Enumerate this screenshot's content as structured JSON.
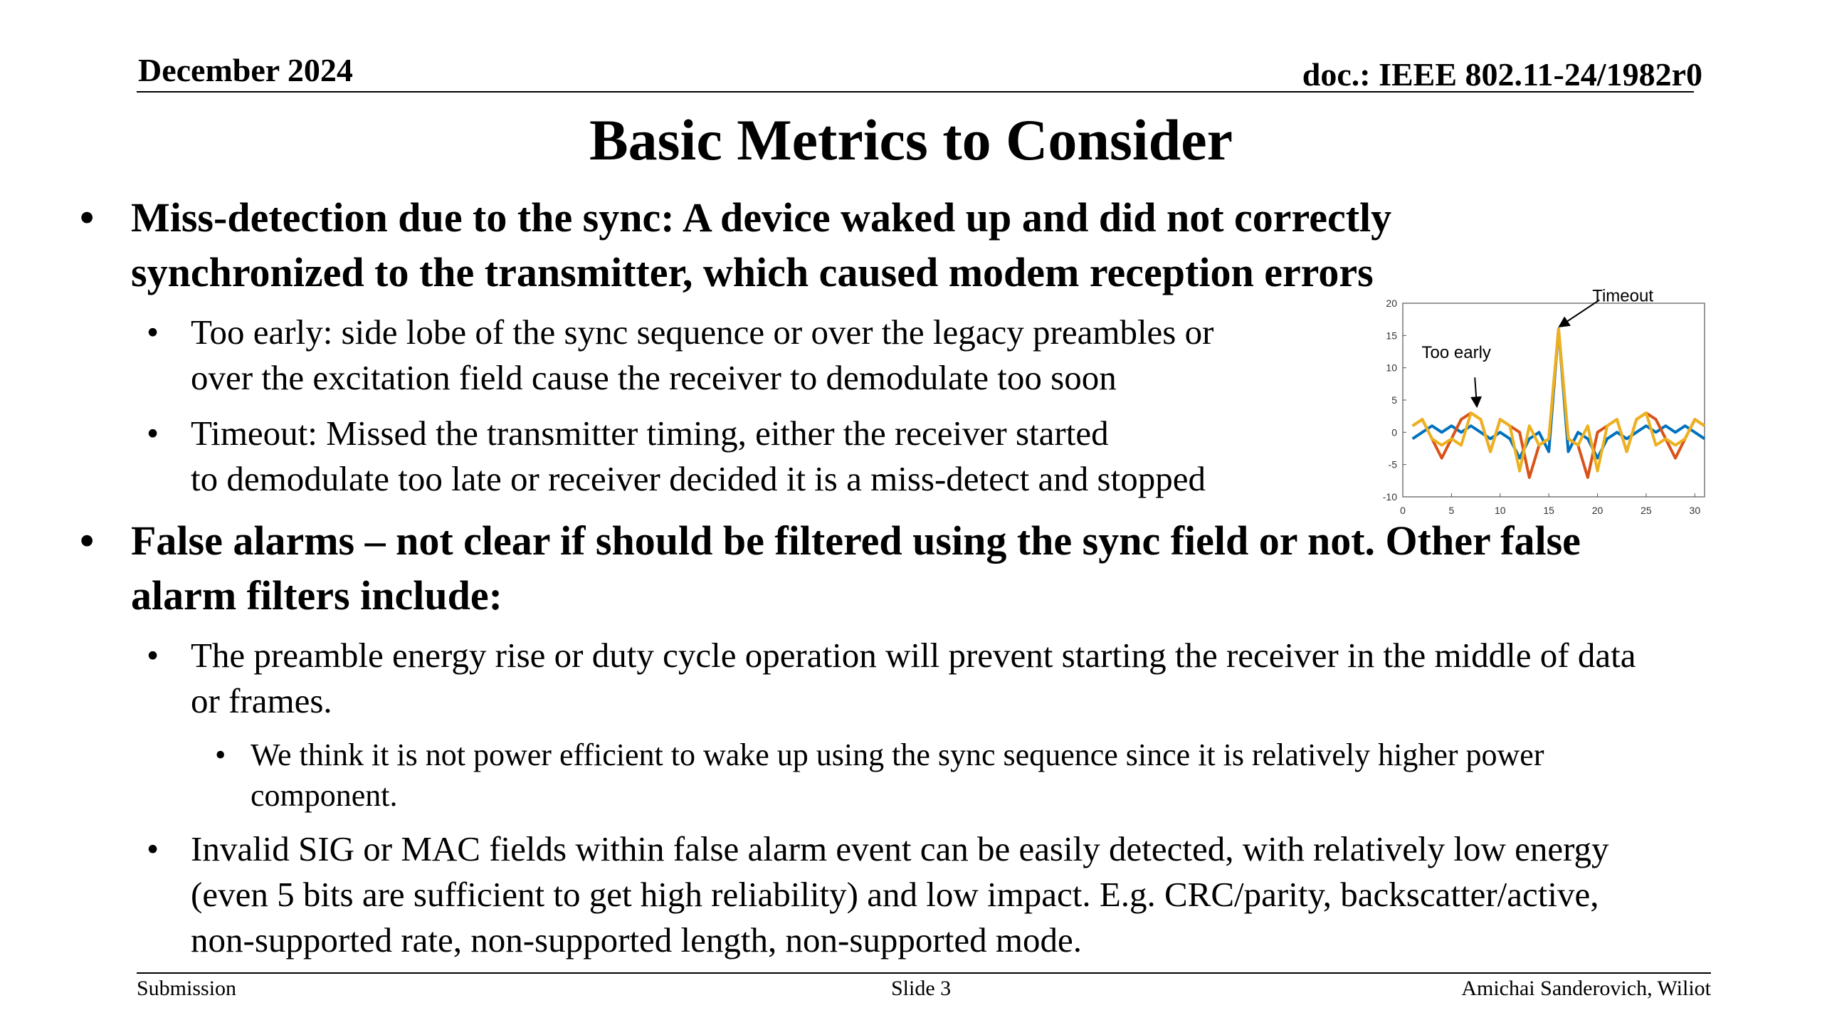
{
  "header": {
    "date": "December 2024",
    "doc": "doc.: IEEE 802.11-24/1982r0"
  },
  "title": "Basic Metrics to Consider",
  "bullets": {
    "miss": {
      "line1": "Miss-detection due to the sync: A device waked up and did not correctly",
      "line2": "synchronized to the transmitter, which caused modem reception errors",
      "early": {
        "line1": "Too early: side lobe of the sync sequence or over the legacy preambles or",
        "line2": "over the excitation field cause the receiver to demodulate too soon"
      },
      "timeout": {
        "line1": "Timeout: Missed the transmitter timing, either the receiver started",
        "line2": "to demodulate too late or receiver decided it is a miss-detect and stopped"
      }
    },
    "false": {
      "line1": "False alarms – not clear if should be filtered using the sync field or not. Other false",
      "line2": "alarm filters include:",
      "preamble": {
        "line1": "The preamble energy rise or duty cycle operation will prevent starting the receiver in the middle of data",
        "line2": "or frames."
      },
      "power": {
        "line1": "We think it is not power efficient to wake up using the sync sequence since it is relatively higher power",
        "line2": "component."
      },
      "invalid": {
        "line1": "Invalid SIG or MAC fields within false alarm event can be easily detected, with relatively low energy",
        "line2": "(even 5 bits are sufficient to get high reliability) and low impact. E.g. CRC/parity, backscatter/active,",
        "line3": "non-supported rate, non-supported length, non-supported mode."
      }
    }
  },
  "bullet_char": "•",
  "footer": {
    "left": "Submission",
    "center": "Slide 3",
    "right": "Amichai Sanderovich, Wiliot"
  },
  "chart_data": {
    "type": "line",
    "xlim": [
      0,
      31
    ],
    "ylim": [
      -10,
      20
    ],
    "xticks": [
      "0",
      "5",
      "10",
      "15",
      "20",
      "25",
      "30"
    ],
    "yticks": [
      "-10",
      "-5",
      "0",
      "5",
      "10",
      "15",
      "20"
    ],
    "x": [
      1,
      2,
      3,
      4,
      5,
      6,
      7,
      8,
      9,
      10,
      11,
      12,
      13,
      14,
      15,
      16,
      17,
      18,
      19,
      20,
      21,
      22,
      23,
      24,
      25,
      26,
      27,
      28,
      29,
      30,
      31
    ],
    "series": [
      {
        "color": "#0072BD",
        "values": [
          -1,
          0,
          1,
          0,
          1,
          0,
          1,
          0,
          -1,
          0,
          -1,
          -4,
          -1,
          0,
          -3,
          16,
          -3,
          0,
          -1,
          -4,
          -1,
          0,
          -1,
          0,
          1,
          0,
          1,
          0,
          1,
          0,
          -1
        ]
      },
      {
        "color": "#D95319",
        "values": [
          1,
          2,
          -1,
          -4,
          -1,
          2,
          3,
          2,
          -3,
          2,
          1,
          0,
          -7,
          -2,
          -1,
          16,
          -1,
          -2,
          -7,
          0,
          1,
          2,
          -3,
          2,
          3,
          2,
          -1,
          -4,
          -1,
          2,
          1
        ]
      },
      {
        "color": "#EDB120",
        "values": [
          1,
          2,
          -1,
          -2,
          -1,
          -2,
          3,
          2,
          -3,
          2,
          1,
          -6,
          1,
          -2,
          -1,
          16,
          -1,
          -2,
          1,
          -6,
          1,
          2,
          -3,
          2,
          3,
          -2,
          -1,
          -2,
          -1,
          2,
          1
        ]
      }
    ],
    "annotations": [
      {
        "text": "Too early",
        "x": 7,
        "y": 3
      },
      {
        "text": "Timeout",
        "x": 16,
        "y": 16
      }
    ],
    "grid": false
  }
}
